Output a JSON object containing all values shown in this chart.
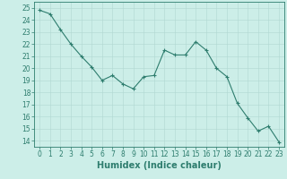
{
  "x": [
    0,
    1,
    2,
    3,
    4,
    5,
    6,
    7,
    8,
    9,
    10,
    11,
    12,
    13,
    14,
    15,
    16,
    17,
    18,
    19,
    20,
    21,
    22,
    23
  ],
  "y": [
    24.8,
    24.5,
    23.2,
    22.0,
    21.0,
    20.1,
    19.0,
    19.4,
    18.7,
    18.3,
    19.3,
    19.4,
    21.5,
    21.1,
    21.1,
    22.2,
    21.5,
    20.0,
    19.3,
    17.1,
    15.9,
    14.8,
    15.2,
    13.9
  ],
  "line_color": "#2e7d6e",
  "marker": "+",
  "bg_color": "#cceee8",
  "grid_color": "#b0d8d2",
  "xlabel": "Humidex (Indice chaleur)",
  "xlim": [
    -0.5,
    23.5
  ],
  "ylim": [
    13.5,
    25.5
  ],
  "yticks": [
    14,
    15,
    16,
    17,
    18,
    19,
    20,
    21,
    22,
    23,
    24,
    25
  ],
  "xticks": [
    0,
    1,
    2,
    3,
    4,
    5,
    6,
    7,
    8,
    9,
    10,
    11,
    12,
    13,
    14,
    15,
    16,
    17,
    18,
    19,
    20,
    21,
    22,
    23
  ],
  "tick_color": "#2e7d6e",
  "label_fontsize": 5.5,
  "axis_fontsize": 7.0
}
